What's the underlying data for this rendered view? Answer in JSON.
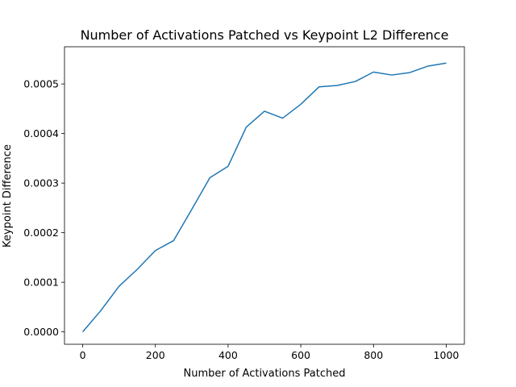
{
  "chart_data": {
    "type": "line",
    "title": "Number of Activations Patched vs Keypoint L2 Difference",
    "xlabel": "Number of Activations Patched",
    "ylabel": "Keypoint Difference",
    "xlim": [
      -50,
      1050
    ],
    "ylim": [
      -2.5e-05,
      0.000575
    ],
    "x_ticks": [
      0,
      200,
      400,
      600,
      800,
      1000
    ],
    "x_tick_labels": [
      "0",
      "200",
      "400",
      "600",
      "800",
      "1000"
    ],
    "y_ticks": [
      0,
      0.0001,
      0.0002,
      0.0003,
      0.0004,
      0.0005
    ],
    "y_tick_labels": [
      "0.0000",
      "0.0001",
      "0.0002",
      "0.0003",
      "0.0004",
      "0.0005"
    ],
    "grid": false,
    "legend": "none",
    "line_color": "#1f77b4",
    "series": [
      {
        "x": [
          0,
          50,
          100,
          150,
          200,
          250,
          300,
          350,
          400,
          450,
          500,
          550,
          600,
          650,
          700,
          750,
          800,
          850,
          900,
          950,
          1000
        ],
        "values": [
          0.0,
          4.3e-05,
          9.2e-05,
          0.000126,
          0.000164,
          0.000184,
          0.000247,
          0.000311,
          0.000334,
          0.000413,
          0.000445,
          0.000431,
          0.000459,
          0.000494,
          0.000497,
          0.000505,
          0.000524,
          0.000518,
          0.000523,
          0.000536,
          0.000542
        ]
      }
    ]
  }
}
